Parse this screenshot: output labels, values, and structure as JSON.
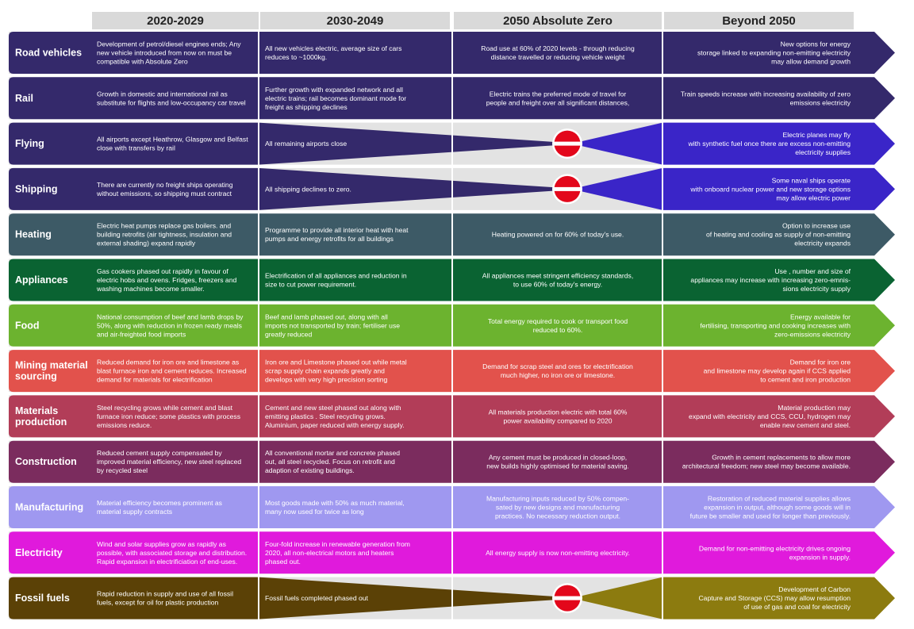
{
  "headers": [
    "2020-2029",
    "2030-2049",
    "2050 Absolute Zero",
    "Beyond 2050"
  ],
  "colors": {
    "header_bg": "#d9d9d9",
    "band_bg": "#e3e3e3",
    "stop_red": "#e3071b",
    "stop_white": "#ffffff"
  },
  "rows": [
    {
      "label": [
        "Road vehicles"
      ],
      "color": "#34296b",
      "beyond_color": "#34296b",
      "stop": false,
      "cells": [
        [
          "Development of petrol/diesel engines ends; Any",
          "new vehicle introduced from now on must be",
          "compatible with Absolute Zero"
        ],
        [
          "All new vehicles electric, average size of cars",
          "reduces to ~1000kg."
        ],
        [
          "Road use at 60% of 2020 levels - through reducing",
          "distance travelled or reducing vehicle weight"
        ],
        [
          "New options for energy",
          "storage linked to expanding non-emitting electricity",
          "may allow demand growth"
        ]
      ]
    },
    {
      "label": [
        "Rail"
      ],
      "color": "#34296b",
      "beyond_color": "#34296b",
      "stop": false,
      "cells": [
        [
          "Growth in domestic and international rail as",
          "substitute for flights and low-occupancy car travel"
        ],
        [
          "Further growth with expanded network and all",
          "electric trains; rail becomes dominant mode for",
          "freight as shipping declines"
        ],
        [
          "Electric trains the preferred mode of travel for",
          "people and freight over all significant distances,"
        ],
        [
          "Train speeds increase with increasing availability of zero",
          "emissions electricity"
        ]
      ]
    },
    {
      "label": [
        "Flying"
      ],
      "color": "#34296b",
      "beyond_color": "#3a25c8",
      "stop": true,
      "cells": [
        [
          "All airports except Heathrow, Glasgow and Belfast",
          "close with transfers by rail"
        ],
        [
          "All remaining airports close"
        ],
        [],
        [
          "Electric planes may fly",
          "with synthetic fuel once  there are excess non-emitting",
          "electricity supplies"
        ]
      ]
    },
    {
      "label": [
        "Shipping"
      ],
      "color": "#34296b",
      "beyond_color": "#3a25c8",
      "stop": true,
      "cells": [
        [
          "There are currently no freight ships operating",
          "without emissions, so shipping must contract"
        ],
        [
          "All shipping declines to zero."
        ],
        [],
        [
          "Some naval ships operate",
          "with onboard nuclear power and new storage options",
          "may allow electric power"
        ]
      ]
    },
    {
      "label": [
        "Heating"
      ],
      "color": "#3d5a66",
      "beyond_color": "#3d5a66",
      "stop": false,
      "cells": [
        [
          "Electric heat pumps replace gas boilers. and",
          "building retrofits (air tightness, insulation and",
          "external shading) expand rapidly"
        ],
        [
          "Programme to provide all interior heat with heat",
          "pumps and energy retrofits for all buildings"
        ],
        [
          "Heating powered on for 60% of today's use."
        ],
        [
          "Option to increase use",
          "of heating and cooling as supply of non-emitting",
          "electricity expands"
        ]
      ]
    },
    {
      "label": [
        "Appliances"
      ],
      "color": "#0a6332",
      "beyond_color": "#0a6332",
      "stop": false,
      "cells": [
        [
          "Gas cookers phased out rapidly in favour of",
          "electric hobs and ovens. Fridges, freezers and",
          "washing machines become smaller."
        ],
        [
          "Electrification of all appliances and reduction in",
          "size to cut power requirement."
        ],
        [
          "All appliances meet stringent efficiency standards,",
          "to use 60% of today's energy."
        ],
        [
          "Use , number and size of",
          "appliances  may increase with increasing zero-emnis-",
          "sions electricity supply"
        ]
      ]
    },
    {
      "label": [
        "Food"
      ],
      "color": "#6cb32f",
      "beyond_color": "#6cb32f",
      "stop": false,
      "cells": [
        [
          "National consumption of beef and lamb drops by",
          "50%, along with reduction in frozen ready meals",
          "and air-freighted food imports"
        ],
        [
          "Beef and lamb phased out, along with all",
          "imports not transported by train; fertiliser use",
          "greatly reduced"
        ],
        [
          "Total energy required to cook or transport food",
          "reduced to 60%."
        ],
        [
          "Energy available for",
          "fertilising, transporting and cooking increases with",
          "zero-emissions electricity"
        ]
      ]
    },
    {
      "label": [
        "Mining  material",
        "sourcing"
      ],
      "color": "#e2524c",
      "beyond_color": "#e2524c",
      "stop": false,
      "cells": [
        [
          "Reduced demand for iron ore and limestone as",
          "blast furnace iron and cement reduces. Increased",
          "demand for materials for electrification"
        ],
        [
          "Iron ore and Limestone phased out while metal",
          "scrap supply chain expands greatly and",
          "develops with very high precision sorting"
        ],
        [
          "Demand for scrap steel and ores for electrification",
          "much higher, no iron ore or limestone."
        ],
        [
          "Demand for iron ore",
          "and limestone may develop again if CCS applied",
          "to cement and iron production"
        ]
      ]
    },
    {
      "label": [
        "Materials",
        "production"
      ],
      "color": "#b23d58",
      "beyond_color": "#b23d58",
      "stop": false,
      "cells": [
        [
          "Steel recycling grows while cement and blast",
          "furnace iron reduce; some plastics with process",
          "emissions reduce."
        ],
        [
          "Cement and new steel phased out along with",
          "emitting plastics . Steel recycling grows.",
          "Aluminium, paper reduced with energy supply."
        ],
        [
          "All materials production electric with total 60%",
          "power availability compared to 2020"
        ],
        [
          "Material production may",
          "expand with electricity and CCS, CCU, hydrogen may",
          "enable new cement and steel."
        ]
      ]
    },
    {
      "label": [
        "Construction"
      ],
      "color": "#7b2c5e",
      "beyond_color": "#7b2c5e",
      "stop": false,
      "cells": [
        [
          "Reduced cement supply compensated by",
          "improved material efficiency, new steel replaced",
          "by recycled steel"
        ],
        [
          "All conventional mortar and concrete phased",
          "out, all steel recycled. Focus on retrofit and",
          "adaption of existing buildings."
        ],
        [
          "Any cement must be produced in closed-loop,",
          "new builds highly optimised for material saving."
        ],
        [
          "Growth in cement replacements to allow more",
          "architectural freedom; new steel may become available."
        ]
      ]
    },
    {
      "label": [
        "Manufacturing"
      ],
      "color": "#9f98f0",
      "beyond_color": "#9f98f0",
      "stop": false,
      "cells": [
        [
          "Material efficiency becomes prominent as",
          "material supply contracts"
        ],
        [
          "Most goods made with 50% as much material,",
          "many now used for twice as long"
        ],
        [
          "Manufacturing inputs reduced by 50% compen-",
          "sated by new designs and manufacturing",
          "practices. No necessary reduction output."
        ],
        [
          "Restoration of reduced material supplies allows",
          "expansion in output, although some goods will in",
          "future be smaller and used for longer than previously."
        ]
      ]
    },
    {
      "label": [
        "Electricity"
      ],
      "color": "#e01adc",
      "beyond_color": "#e01adc",
      "stop": false,
      "cells": [
        [
          "Wind and solar supplies grow as rapidly as",
          "possible, with associated storage and distribution.",
          "Rapid expansion in electrificiation of end-uses."
        ],
        [
          "Four-fold increase in renewable generation from",
          "2020, all non-electrical motors and heaters",
          "phased out."
        ],
        [
          "All energy supply is now non-emitting electricity."
        ],
        [
          "Demand for non-emitting electricity drives ongoing",
          "expansion in supply."
        ]
      ]
    },
    {
      "label": [
        "Fossil fuels"
      ],
      "color": "#5b4106",
      "beyond_color": "#8c7b0f",
      "stop": true,
      "cells": [
        [
          "Rapid reduction in supply and use of all fossil",
          "fuels, except for oil for plastic production"
        ],
        [
          "Fossil fuels completed phased out"
        ],
        [],
        [
          "Development of Carbon",
          "Capture and Storage (CCS) may allow resumption",
          "of use of gas and coal for electricity"
        ]
      ]
    }
  ]
}
